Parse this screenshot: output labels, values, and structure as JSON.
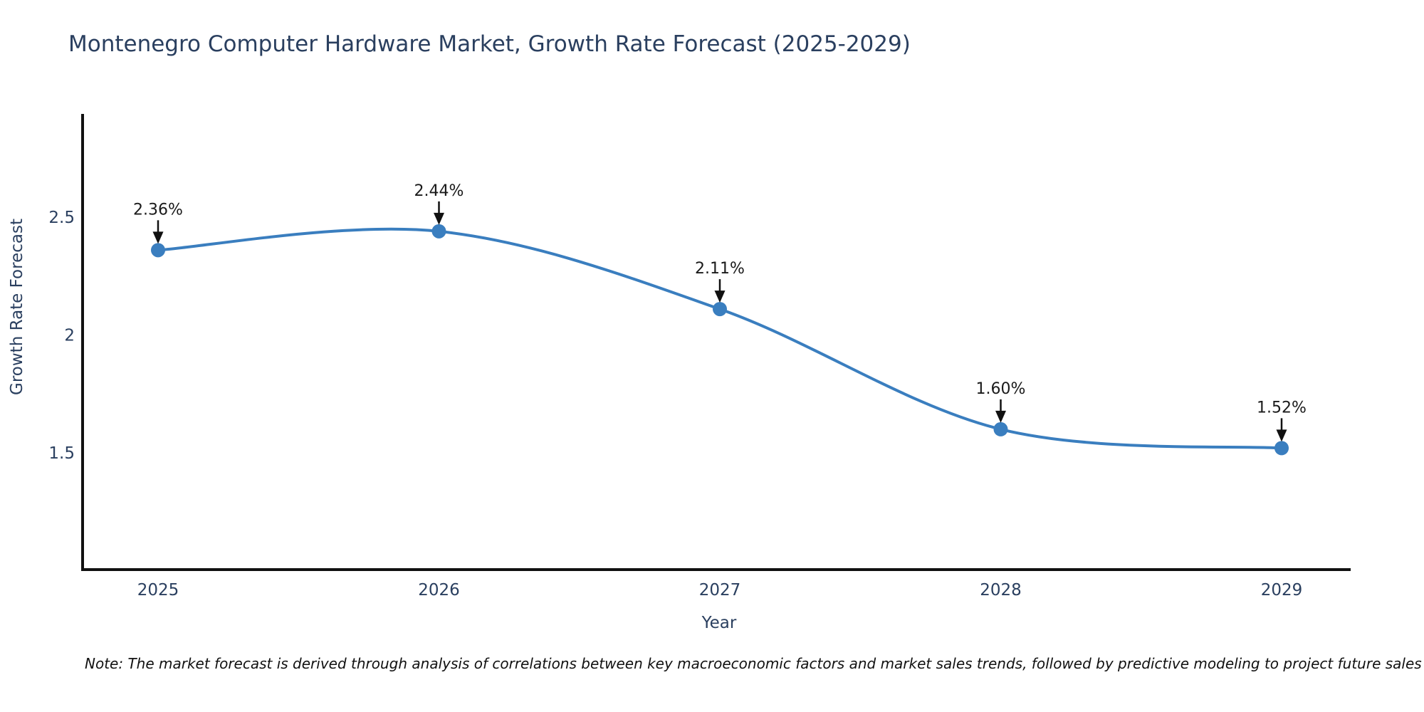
{
  "title": "Montenegro Computer Hardware Market, Growth Rate Forecast (2025-2029)",
  "note": "Note: The market forecast is derived through analysis of correlations between key macroeconomic factors and market sales trends, followed by predictive modeling to project future sales",
  "chart_data": {
    "type": "line",
    "line_shape": "spline",
    "title": "Montenegro Computer Hardware Market, Growth Rate Forecast (2025-2029)",
    "xlabel": "Year",
    "ylabel": "Growth Rate Forecast",
    "x": [
      2025,
      2026,
      2027,
      2028,
      2029
    ],
    "y": [
      2.36,
      2.44,
      2.11,
      1.6,
      1.52
    ],
    "point_labels": [
      "2.36%",
      "2.44%",
      "2.11%",
      "1.60%",
      "1.52%"
    ],
    "xtick_labels": [
      "2025",
      "2026",
      "2027",
      "2028",
      "2029"
    ],
    "yticks": [
      2.5,
      2.0,
      1.5
    ],
    "ytick_labels": [
      "2.5",
      "2",
      "1.5"
    ],
    "ylim": [
      1.0,
      2.94
    ],
    "grid": false,
    "legend": false,
    "annotations_have_arrows": true,
    "colors": {
      "line": "#3a7ebf",
      "marker": "#3a7ebf",
      "axis": "#111111",
      "tick_text": "#2a3f5f",
      "annotation_text": "#1a1a1a",
      "arrow": "#111111",
      "background": "#ffffff"
    }
  }
}
